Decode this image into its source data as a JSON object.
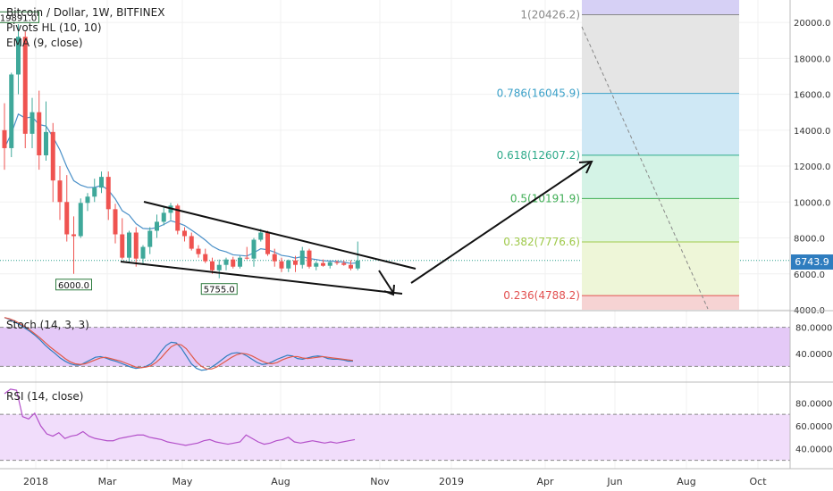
{
  "header": {
    "symbol_line": "Bitcoin / Dollar, 1W, BITFINEX",
    "indicator_1": "Pivots HL (10, 10)",
    "indicator_2": "EMA (9, close)"
  },
  "stoch_label": "Stoch (14, 3, 3)",
  "rsi_label": "RSI (14, close)",
  "last_price": "6743.9",
  "colors": {
    "up": "#3fa89a",
    "down": "#ef5350",
    "ema": "#4a90c8",
    "stoch_k": "#2f7dbf",
    "stoch_d": "#e05a4a",
    "rsi": "#b34fc9",
    "stoch_band": "#e4c9f7",
    "rsi_band": "#f1ddfb",
    "price_line": "#2f9f8e",
    "accent": "#2f7dbf"
  },
  "chart_data": {
    "type": "candlestick",
    "price_axis": {
      "min": 4000,
      "max": 21000,
      "ticks": [
        "20000.0",
        "18000.0",
        "16000.0",
        "14000.0",
        "12000.0",
        "10000.0",
        "8000.0",
        "6000.0",
        "4000.0"
      ]
    },
    "time_axis": {
      "ticks": [
        "2018",
        "Mar",
        "May",
        "Aug",
        "Nov",
        "2019",
        "Apr",
        "Jun",
        "Aug",
        "Oct"
      ]
    },
    "candles": [
      {
        "o": 14000,
        "h": 15500,
        "l": 11800,
        "c": 13000
      },
      {
        "o": 13000,
        "h": 17200,
        "l": 12500,
        "c": 17100
      },
      {
        "o": 17100,
        "h": 19891,
        "l": 16000,
        "c": 19200
      },
      {
        "o": 19200,
        "h": 19500,
        "l": 13000,
        "c": 13800
      },
      {
        "o": 13800,
        "h": 15800,
        "l": 13000,
        "c": 15000
      },
      {
        "o": 15000,
        "h": 16200,
        "l": 11800,
        "c": 12600
      },
      {
        "o": 12600,
        "h": 15600,
        "l": 12300,
        "c": 13900
      },
      {
        "o": 13900,
        "h": 14400,
        "l": 10000,
        "c": 11200
      },
      {
        "o": 11200,
        "h": 12000,
        "l": 9000,
        "c": 10000
      },
      {
        "o": 10000,
        "h": 11500,
        "l": 7800,
        "c": 8200
      },
      {
        "o": 8200,
        "h": 9200,
        "l": 6000,
        "c": 8100
      },
      {
        "o": 8100,
        "h": 10200,
        "l": 8000,
        "c": 9950
      },
      {
        "o": 9950,
        "h": 10500,
        "l": 9500,
        "c": 10300
      },
      {
        "o": 10300,
        "h": 11300,
        "l": 10000,
        "c": 10800
      },
      {
        "o": 10800,
        "h": 11700,
        "l": 10500,
        "c": 11400
      },
      {
        "o": 11400,
        "h": 11700,
        "l": 9000,
        "c": 9600
      },
      {
        "o": 9600,
        "h": 9900,
        "l": 7700,
        "c": 8200
      },
      {
        "o": 8200,
        "h": 9100,
        "l": 6800,
        "c": 6900
      },
      {
        "o": 6900,
        "h": 8400,
        "l": 6600,
        "c": 8300
      },
      {
        "o": 8300,
        "h": 8600,
        "l": 6400,
        "c": 6850
      },
      {
        "o": 6850,
        "h": 7600,
        "l": 6500,
        "c": 7500
      },
      {
        "o": 7500,
        "h": 8600,
        "l": 7100,
        "c": 8400
      },
      {
        "o": 8400,
        "h": 9300,
        "l": 8000,
        "c": 8900
      },
      {
        "o": 8900,
        "h": 9700,
        "l": 8700,
        "c": 9400
      },
      {
        "o": 9400,
        "h": 9950,
        "l": 9000,
        "c": 9800
      },
      {
        "o": 9800,
        "h": 9900,
        "l": 8200,
        "c": 8400
      },
      {
        "o": 8400,
        "h": 8600,
        "l": 7800,
        "c": 8100
      },
      {
        "o": 8100,
        "h": 8300,
        "l": 7300,
        "c": 7400
      },
      {
        "o": 7400,
        "h": 7600,
        "l": 6900,
        "c": 7100
      },
      {
        "o": 7100,
        "h": 7400,
        "l": 6600,
        "c": 6700
      },
      {
        "o": 6700,
        "h": 6900,
        "l": 6000,
        "c": 6200
      },
      {
        "o": 6200,
        "h": 6800,
        "l": 5755,
        "c": 6500
      },
      {
        "o": 6500,
        "h": 6900,
        "l": 6200,
        "c": 6800
      },
      {
        "o": 6800,
        "h": 6950,
        "l": 6300,
        "c": 6400
      },
      {
        "o": 6400,
        "h": 7000,
        "l": 6300,
        "c": 6900
      },
      {
        "o": 6900,
        "h": 7500,
        "l": 6800,
        "c": 6850
      },
      {
        "o": 6850,
        "h": 8000,
        "l": 6400,
        "c": 7900
      },
      {
        "o": 7900,
        "h": 8500,
        "l": 7800,
        "c": 8300
      },
      {
        "o": 8300,
        "h": 8400,
        "l": 7000,
        "c": 7100
      },
      {
        "o": 7100,
        "h": 7400,
        "l": 6400,
        "c": 6700
      },
      {
        "o": 6700,
        "h": 6900,
        "l": 6100,
        "c": 6300
      },
      {
        "o": 6300,
        "h": 6800,
        "l": 6100,
        "c": 6750
      },
      {
        "o": 6750,
        "h": 7000,
        "l": 6100,
        "c": 6500
      },
      {
        "o": 6500,
        "h": 7500,
        "l": 6300,
        "c": 7300
      },
      {
        "o": 7300,
        "h": 7400,
        "l": 6300,
        "c": 6400
      },
      {
        "o": 6400,
        "h": 6700,
        "l": 6200,
        "c": 6600
      },
      {
        "o": 6600,
        "h": 6800,
        "l": 6400,
        "c": 6450
      },
      {
        "o": 6450,
        "h": 6700,
        "l": 6300,
        "c": 6650
      },
      {
        "o": 6650,
        "h": 6750,
        "l": 6500,
        "c": 6600
      },
      {
        "o": 6600,
        "h": 6750,
        "l": 6450,
        "c": 6500
      },
      {
        "o": 6500,
        "h": 6750,
        "l": 6200,
        "c": 6300
      },
      {
        "o": 6300,
        "h": 7800,
        "l": 6200,
        "c": 6743.9
      }
    ],
    "pivot_labels": [
      {
        "label": "19891.0",
        "index": 2,
        "kind": "high"
      },
      {
        "label": "6000.0",
        "index": 10,
        "kind": "low"
      },
      {
        "label": "5755.0",
        "index": 31,
        "kind": "low"
      }
    ],
    "fibonacci": [
      {
        "label": "1(20426.2)",
        "value": 20426.2,
        "band_color": "#d6d0f5",
        "line_color": "#888888",
        "text_color": "#888888"
      },
      {
        "label": "0.786(16045.9)",
        "value": 16045.9,
        "band_color": "#e5e5e5",
        "line_color": "#3aa0c8",
        "text_color": "#3aa0c8"
      },
      {
        "label": "0.618(12607.2)",
        "value": 12607.2,
        "band_color": "#cfe8f5",
        "line_color": "#2eaa8a",
        "text_color": "#2eaa8a"
      },
      {
        "label": "0.5(10191.9)",
        "value": 10191.9,
        "band_color": "#d4f3e6",
        "line_color": "#3fae55",
        "text_color": "#3fae55"
      },
      {
        "label": "0.382(7776.6)",
        "value": 7776.6,
        "band_color": "#e1f6df",
        "line_color": "#9fc94a",
        "text_color": "#9fc94a"
      },
      {
        "label": "0.236(4788.2)",
        "value": 4788.2,
        "band_color": "#eef6d8",
        "line_color": "#e25050",
        "text_color": "#e25050"
      }
    ],
    "stochastic": {
      "axis_ticks": [
        "80.0000",
        "40.0000"
      ],
      "range": [
        0,
        100
      ],
      "band": [
        20,
        80
      ],
      "k": [
        95,
        92,
        88,
        84,
        79,
        74,
        68,
        61,
        53,
        46,
        40,
        33,
        28,
        24,
        22,
        22,
        26,
        30,
        34,
        35,
        33,
        30,
        28,
        25,
        22,
        19,
        17,
        18,
        20,
        24,
        32,
        43,
        52,
        57,
        56,
        48,
        36,
        24,
        17,
        14,
        15,
        19,
        24,
        30,
        36,
        40,
        41,
        40,
        36,
        31,
        26,
        23,
        24,
        27,
        31,
        34,
        37,
        36,
        32,
        31,
        33,
        35,
        36,
        35,
        32,
        31,
        31,
        30,
        28,
        28
      ],
      "d": [
        95,
        93,
        90,
        86,
        81,
        76,
        70,
        64,
        57,
        50,
        44,
        38,
        32,
        27,
        24,
        23,
        24,
        27,
        30,
        33,
        34,
        32,
        30,
        28,
        25,
        22,
        19,
        18,
        19,
        21,
        26,
        33,
        42,
        50,
        54,
        53,
        47,
        37,
        27,
        20,
        16,
        16,
        19,
        24,
        29,
        34,
        38,
        40,
        39,
        36,
        32,
        28,
        25,
        24,
        26,
        30,
        33,
        35,
        35,
        33,
        32,
        33,
        34,
        35,
        34,
        33,
        32,
        31,
        30,
        29
      ]
    },
    "rsi": {
      "axis_ticks": [
        "80.0000",
        "60.0000",
        "40.0000"
      ],
      "range": [
        25,
        95
      ],
      "band": [
        30,
        70
      ],
      "values": [
        88,
        92,
        91,
        68,
        66,
        71,
        60,
        53,
        51,
        54,
        49,
        51,
        52,
        55,
        51,
        49,
        48,
        47,
        47,
        49,
        50,
        51,
        52,
        52,
        50,
        49,
        48,
        46,
        45,
        44,
        43,
        44,
        45,
        47,
        48,
        46,
        45,
        44,
        45,
        46,
        52,
        49,
        46,
        44,
        45,
        47,
        48,
        50,
        46,
        45,
        46,
        47,
        46,
        45,
        46,
        45,
        46,
        47,
        48
      ]
    }
  }
}
